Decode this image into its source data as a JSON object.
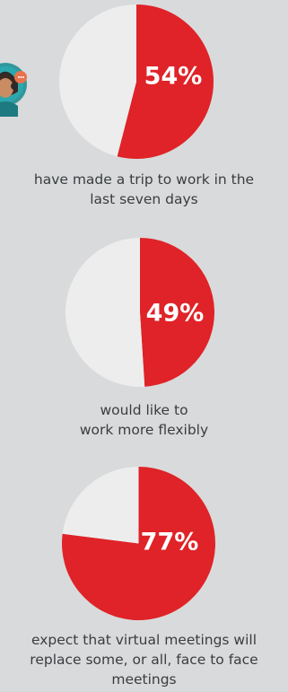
{
  "colors": {
    "background": "#d9dadb",
    "highlight": "#df2328",
    "remainder": "#ededed",
    "caption_text": "#3a3d40"
  },
  "decoration": {
    "avatar": "person-with-headset-icon"
  },
  "chart_data": [
    {
      "type": "pie",
      "slices": [
        {
          "value": 54,
          "color": "#df2328"
        },
        {
          "value": 46,
          "color": "#ededed"
        }
      ],
      "label": "54%",
      "caption_lines": [
        "have made a trip to work in the",
        "last seven days"
      ]
    },
    {
      "type": "pie",
      "slices": [
        {
          "value": 49,
          "color": "#df2328"
        },
        {
          "value": 51,
          "color": "#ededed"
        }
      ],
      "label": "49%",
      "caption_lines": [
        "would like to",
        "work more flexibly"
      ]
    },
    {
      "type": "pie",
      "slices": [
        {
          "value": 77,
          "color": "#df2328"
        },
        {
          "value": 23,
          "color": "#ededed"
        }
      ],
      "label": "77%",
      "caption_lines": [
        "expect that virtual meetings will",
        "replace some, or all, face to face",
        "meetings"
      ]
    }
  ]
}
